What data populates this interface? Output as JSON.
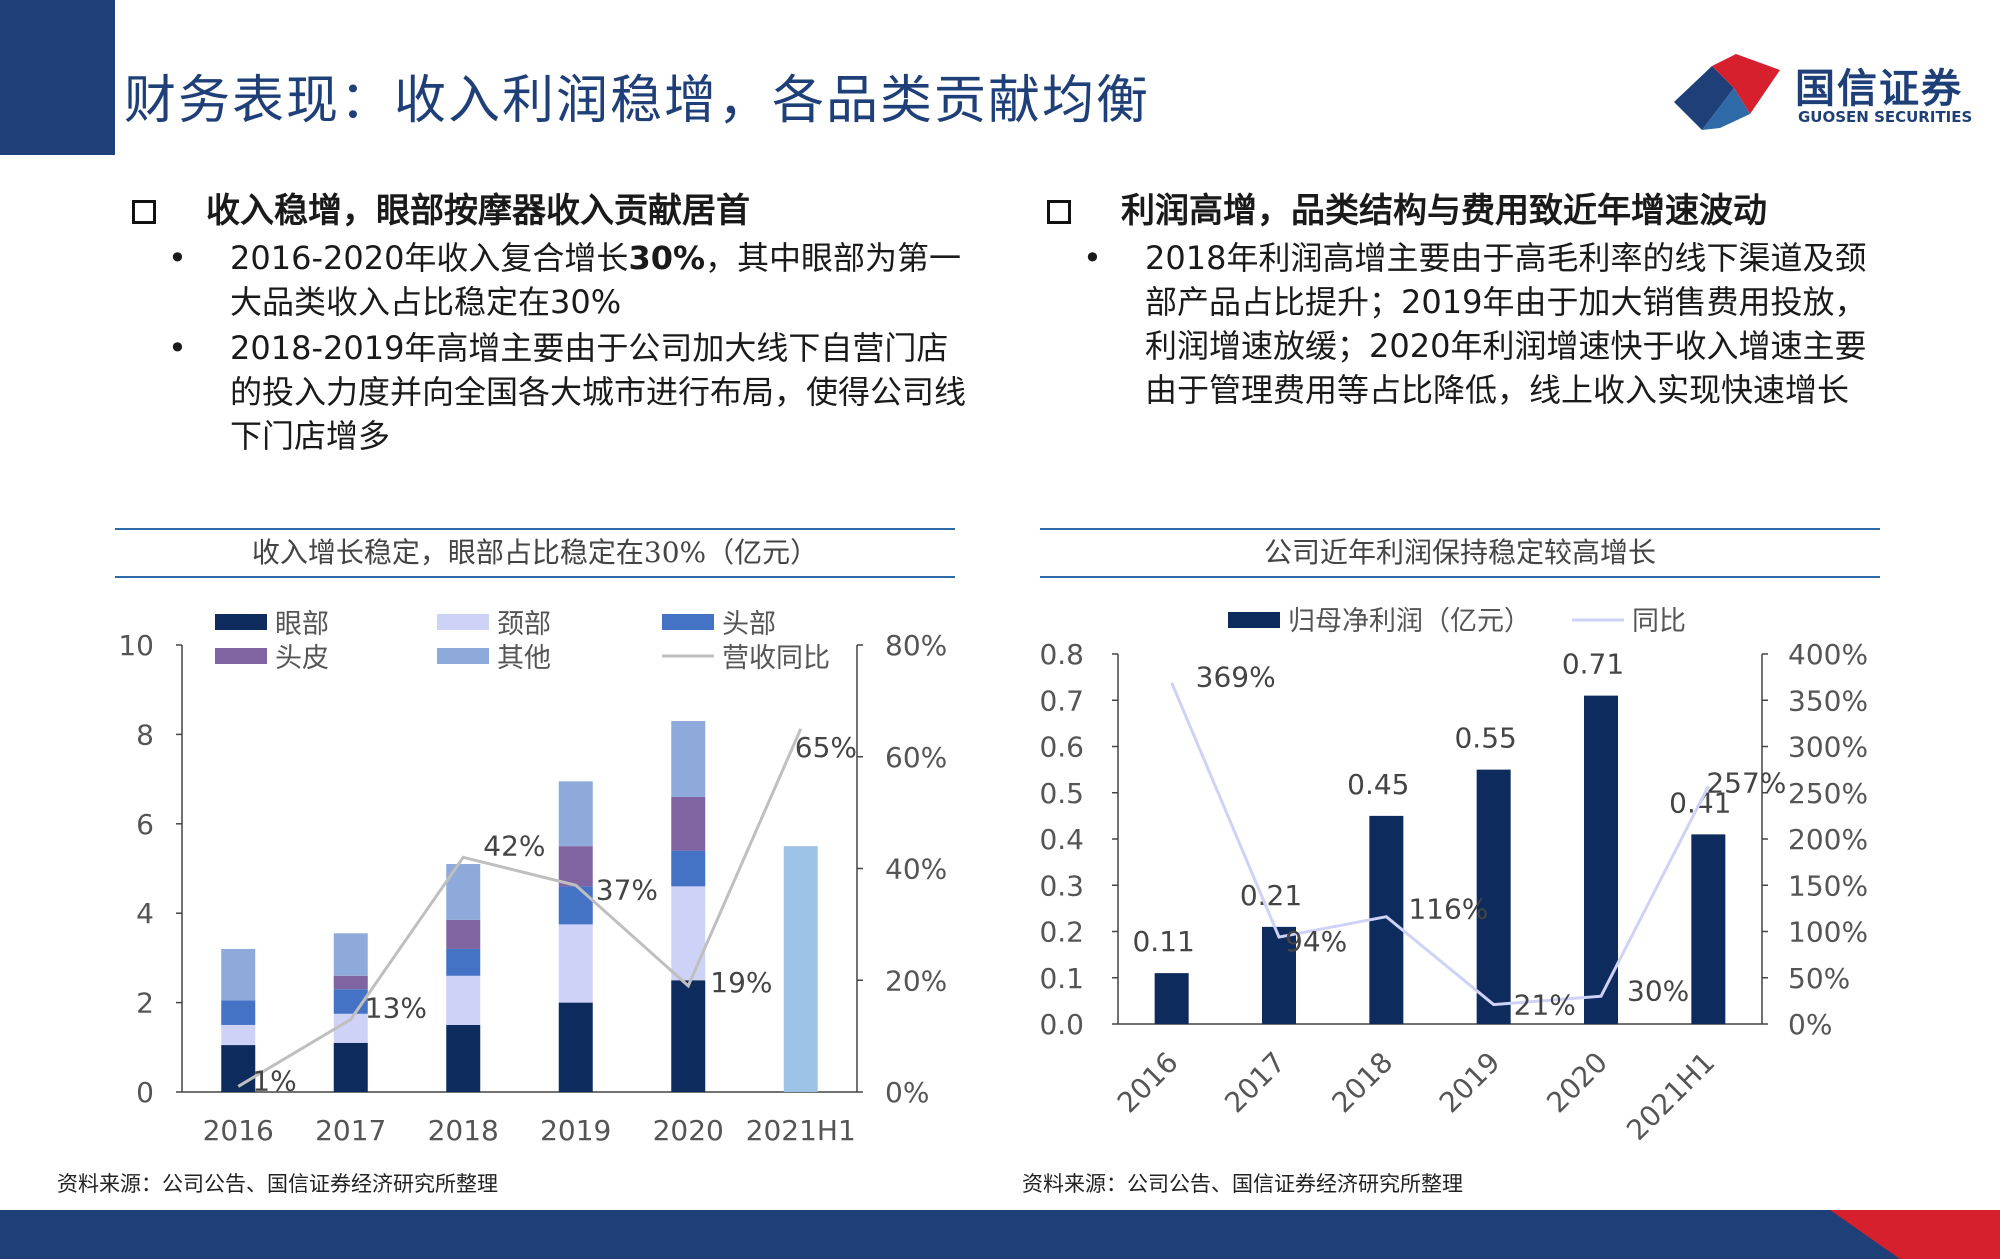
{
  "header": {
    "title": "财务表现：收入利润稳增，各品类贡献均衡",
    "logo_cn": "国信证券",
    "logo_en": "GUOSEN SECURITIES"
  },
  "left_section": {
    "heading": "收入稳增，眼部按摩器收入贡献居首",
    "bullet1_a": "2016-2020年收入复合增长",
    "bullet1_b": "30%",
    "bullet1_c": "，其中眼部为第一大品类收入占比稳定在30%",
    "bullet2": "2018-2019年高增主要由于公司加大线下自营门店的投入力度并向全国各大城市进行布局，使得公司线下门店增多"
  },
  "right_section": {
    "heading": "利润高增，品类结构与费用致近年增速波动",
    "bullet1": "2018年利润高增主要由于高毛利率的线下渠道及颈部产品占比提升；2019年由于加大销售费用投放，利润增速放缓；2020年利润增速快于收入增速主要由于管理费用等占比降低，线上收入实现快速增长"
  },
  "bullet_symbol": "•",
  "chart_data": [
    {
      "type": "bar",
      "stacked": true,
      "title": "收入增长稳定，眼部占比稳定在30%（亿元）",
      "categories": [
        "2016",
        "2017",
        "2018",
        "2019",
        "2020",
        "2021H1"
      ],
      "ylim": [
        0,
        10
      ],
      "yticks": [
        "0",
        "2",
        "4",
        "6",
        "8",
        "10"
      ],
      "y2lim": [
        0,
        0.8
      ],
      "y2ticks": [
        "0%",
        "20%",
        "40%",
        "60%",
        "80%"
      ],
      "series": [
        {
          "name": "眼部",
          "color": "#0d2b5c",
          "values": [
            1.05,
            1.1,
            1.5,
            2.0,
            2.5,
            null
          ]
        },
        {
          "name": "颈部",
          "color": "#cfd2f7",
          "values": [
            0.45,
            0.65,
            1.1,
            1.75,
            2.1,
            null
          ]
        },
        {
          "name": "头部",
          "color": "#4472c4",
          "values": [
            0.55,
            0.55,
            0.6,
            0.85,
            0.8,
            null
          ]
        },
        {
          "name": "头皮",
          "color": "#8064a2",
          "values": [
            0,
            0.3,
            0.65,
            0.9,
            1.2,
            null
          ]
        },
        {
          "name": "其他",
          "color": "#8eaadb",
          "values": [
            1.15,
            0.95,
            1.25,
            1.45,
            1.7,
            null
          ]
        }
      ],
      "total_2021H1": {
        "value": 5.5,
        "color": "#9dc3e6"
      },
      "line": {
        "name": "营收同比",
        "color": "#bfbfbf",
        "values": [
          0.01,
          0.13,
          0.42,
          0.37,
          0.19,
          0.65
        ],
        "labels": [
          "1%",
          "13%",
          "42%",
          "37%",
          "19%",
          "65%"
        ]
      },
      "legend": "top",
      "source": "资料来源：公司公告、国信证券经济研究所整理"
    },
    {
      "type": "bar",
      "title": "公司近年利润保持稳定较高增长",
      "categories": [
        "2016",
        "2017",
        "2018",
        "2019",
        "2020",
        "2021H1"
      ],
      "ylim": [
        0,
        0.8
      ],
      "yticks": [
        "0.0",
        "0.1",
        "0.2",
        "0.3",
        "0.4",
        "0.5",
        "0.6",
        "0.7",
        "0.8"
      ],
      "y2lim": [
        0,
        4
      ],
      "y2ticks": [
        "0%",
        "50%",
        "100%",
        "150%",
        "200%",
        "250%",
        "300%",
        "350%",
        "400%"
      ],
      "series": [
        {
          "name": "归母净利润（亿元）",
          "color": "#0d2b5c",
          "values": [
            0.11,
            0.21,
            0.45,
            0.55,
            0.71,
            0.41
          ],
          "labels": [
            "0.11",
            "0.21",
            "0.45",
            "0.55",
            "0.71",
            "0.41"
          ]
        }
      ],
      "line": {
        "name": "同比",
        "color": "#cfd2f7",
        "values": [
          3.69,
          0.94,
          1.16,
          0.21,
          0.3,
          2.57
        ],
        "labels": [
          "369%",
          "94%",
          "116%",
          "21%",
          "30%",
          "257%"
        ]
      },
      "legend": "top",
      "source": "资料来源：公司公告、国信证券经济研究所整理"
    }
  ]
}
